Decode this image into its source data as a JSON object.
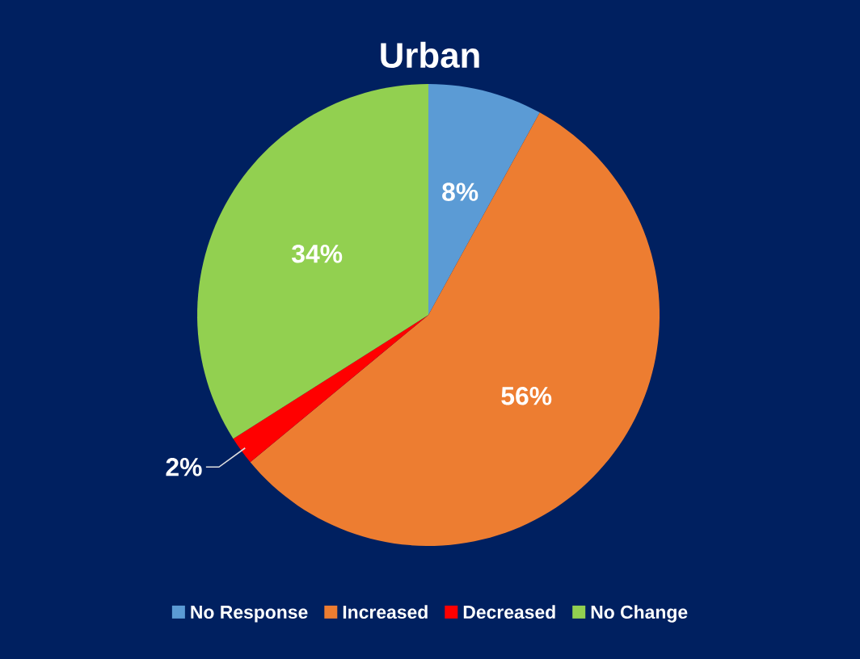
{
  "chart_data": {
    "type": "pie",
    "title": "Urban",
    "categories": [
      "No Response",
      "Increased",
      "Decreased",
      "No Change"
    ],
    "values": [
      8,
      56,
      2,
      34
    ],
    "colors": [
      "#5b9bd5",
      "#ed7d31",
      "#ff0000",
      "#92d050"
    ],
    "value_labels": [
      "8%",
      "56%",
      "2%",
      "34%"
    ],
    "legend": "bottom"
  }
}
